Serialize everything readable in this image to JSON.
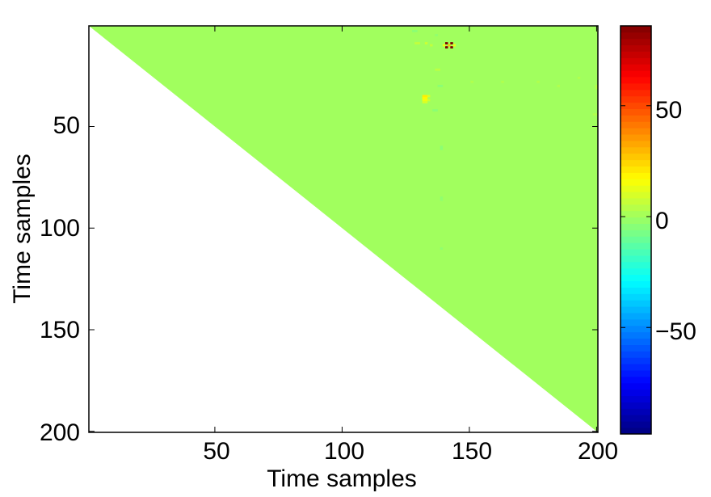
{
  "chart_data": {
    "type": "heatmap",
    "title": "",
    "xlabel": "Time samples",
    "ylabel": "Time samples",
    "xlim": [
      1,
      200
    ],
    "ylim": [
      1,
      200
    ],
    "y_reversed": true,
    "x_ticks": [
      50,
      100,
      150,
      200
    ],
    "y_ticks": [
      50,
      100,
      150,
      200
    ],
    "x_tick_labels": [
      "50",
      "100",
      "150",
      "200"
    ],
    "y_tick_labels": [
      "50",
      "100",
      "150",
      "200"
    ],
    "masked_region": "lower-left triangle (row > column) is blank",
    "background_value": 0,
    "colormap": "jet",
    "colorbar": {
      "range": [
        -98,
        86
      ],
      "ticks": [
        50,
        0,
        -50
      ],
      "tick_labels": [
        "50",
        "0",
        "−50"
      ]
    },
    "highlight_cells": [
      {
        "x": 141,
        "y": 9,
        "value": 86
      },
      {
        "x": 143,
        "y": 9,
        "value": 86
      },
      {
        "x": 141,
        "y": 11,
        "value": 86
      },
      {
        "x": 143,
        "y": 11,
        "value": 86
      },
      {
        "x": 142,
        "y": 10,
        "value": 28
      },
      {
        "x": 140,
        "y": 10,
        "value": 14
      },
      {
        "x": 144,
        "y": 10,
        "value": 14
      },
      {
        "x": 132,
        "y": 35,
        "value": 20
      },
      {
        "x": 133,
        "y": 35,
        "value": 20
      },
      {
        "x": 132,
        "y": 36,
        "value": 18
      },
      {
        "x": 133,
        "y": 36,
        "value": 18
      },
      {
        "x": 132,
        "y": 37,
        "value": 14
      },
      {
        "x": 133,
        "y": 37,
        "value": 14
      },
      {
        "x": 132,
        "y": 38,
        "value": 10
      },
      {
        "x": 133,
        "y": 38,
        "value": 10
      },
      {
        "x": 134,
        "y": 35,
        "value": 10
      },
      {
        "x": 134,
        "y": 37,
        "value": 8
      },
      {
        "x": 129,
        "y": 9,
        "value": 6
      },
      {
        "x": 130,
        "y": 9,
        "value": 6
      },
      {
        "x": 133,
        "y": 9,
        "value": 8
      },
      {
        "x": 135,
        "y": 10,
        "value": 6
      },
      {
        "x": 137,
        "y": 22,
        "value": 5
      },
      {
        "x": 138,
        "y": 22,
        "value": 5
      },
      {
        "x": 128,
        "y": 3,
        "value": -4
      },
      {
        "x": 129,
        "y": 3,
        "value": -4
      },
      {
        "x": 137,
        "y": 5,
        "value": -3
      },
      {
        "x": 138,
        "y": 30,
        "value": -4
      },
      {
        "x": 139,
        "y": 30,
        "value": -4
      },
      {
        "x": 136,
        "y": 42,
        "value": -4
      },
      {
        "x": 137,
        "y": 42,
        "value": -4
      },
      {
        "x": 139,
        "y": 60,
        "value": -4
      },
      {
        "x": 139,
        "y": 61,
        "value": -4
      },
      {
        "x": 139,
        "y": 85,
        "value": -3
      },
      {
        "x": 139,
        "y": 86,
        "value": -3
      },
      {
        "x": 139,
        "y": 110,
        "value": -3
      },
      {
        "x": 200,
        "y": 30,
        "value": 4
      },
      {
        "x": 200,
        "y": 31,
        "value": 4
      },
      {
        "x": 199,
        "y": 44,
        "value": 3
      },
      {
        "x": 200,
        "y": 44,
        "value": 3
      },
      {
        "x": 151,
        "y": 28,
        "value": 3
      },
      {
        "x": 163,
        "y": 28,
        "value": 3
      },
      {
        "x": 177,
        "y": 28,
        "value": 3
      },
      {
        "x": 185,
        "y": 30,
        "value": 3
      },
      {
        "x": 193,
        "y": 26,
        "value": 3
      }
    ]
  }
}
